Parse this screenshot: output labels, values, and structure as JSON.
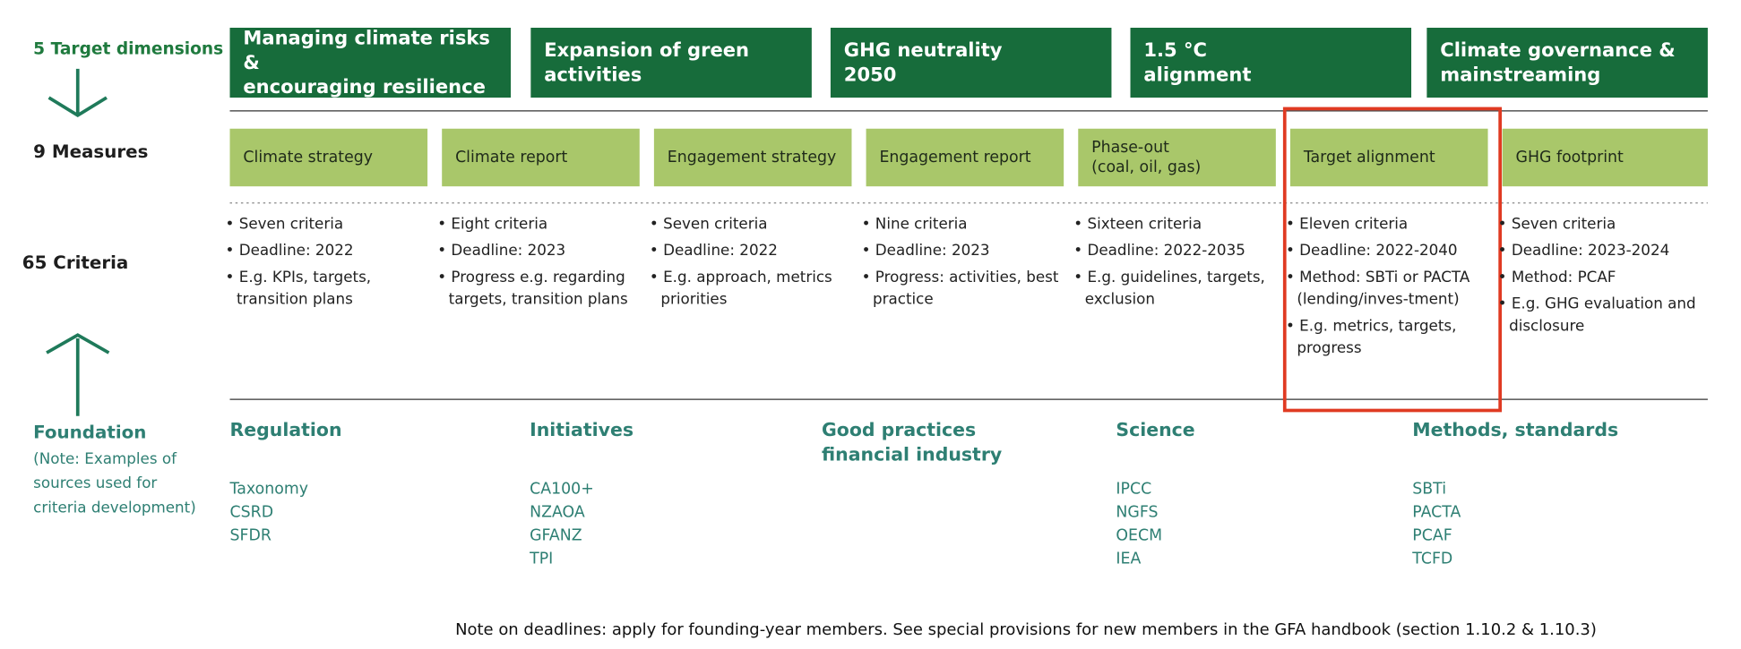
{
  "dimensions": {
    "label": "5 Target dimensions",
    "items": [
      "Managing climate risks &\nencouraging resilience",
      "Expansion of green\nactivities",
      "GHG neutrality\n2050",
      "1.5 °C\nalignment",
      "Climate governance &\nmainstreaming"
    ]
  },
  "measures": {
    "label": "9 Measures",
    "items": [
      "Climate strategy",
      "Climate report",
      "Engagement strategy",
      "Engagement report",
      "Phase-out\n(coal, oil, gas)",
      "Target alignment",
      "GHG footprint"
    ]
  },
  "criteria": {
    "label": "65 Criteria",
    "columns": [
      [
        "Seven criteria",
        "Deadline: 2022",
        "E.g. KPIs, targets, transition plans"
      ],
      [
        "Eight criteria",
        "Deadline: 2023",
        "Progress e.g. regarding targets, transition plans"
      ],
      [
        "Seven criteria",
        "Deadline: 2022",
        "E.g. approach, metrics priorities"
      ],
      [
        "Nine criteria",
        "Deadline: 2023",
        "Progress: activities, best practice"
      ],
      [
        "Sixteen criteria",
        "Deadline: 2022-2035",
        "E.g. guidelines, targets, exclusion"
      ],
      [
        "Eleven criteria",
        "Deadline: 2022-2040",
        "Method: SBTi or PACTA (lending/inves-tment)",
        "E.g. metrics, targets, progress"
      ],
      [
        "Seven criteria",
        "Deadline: 2023-2024",
        "Method: PCAF",
        "E.g. GHG evaluation and disclosure"
      ]
    ]
  },
  "foundation": {
    "label": "Foundation",
    "note": "(Note: Examples of\nsources used for\ncriteria development)",
    "columns": [
      {
        "title": "Regulation",
        "items": [
          "Taxonomy",
          "CSRD",
          "SFDR"
        ]
      },
      {
        "title": "Initiatives",
        "items": [
          "CA100+",
          "NZAOA",
          "GFANZ",
          "TPI"
        ]
      },
      {
        "title": "Good practices\nfinancial industry",
        "items": []
      },
      {
        "title": "Science",
        "items": [
          "IPCC",
          "NGFS",
          "OECM",
          "IEA"
        ]
      },
      {
        "title": "Methods, standards",
        "items": [
          "SBTi",
          "PACTA",
          "PCAF",
          "TCFD"
        ]
      }
    ]
  },
  "footnote": "Note on deadlines: apply for founding-year members. See special provisions for new members in the GFA handbook (section 1.10.2 & 1.10.3)"
}
